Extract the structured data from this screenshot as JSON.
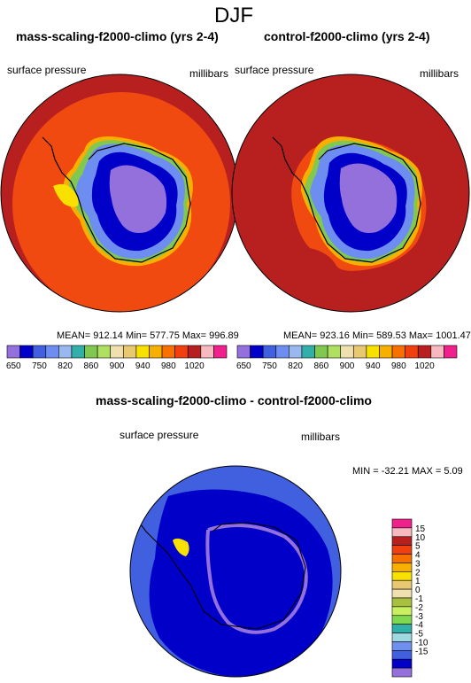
{
  "page_title": "DJF",
  "panels": [
    {
      "title": "mass-scaling-f2000-climo (yrs 2-4)",
      "variable": "surface pressure",
      "units": "millibars",
      "stats": "MEAN= 912.14  Min= 577.75  Max= 996.89"
    },
    {
      "title": "control-f2000-climo (yrs 2-4)",
      "variable": "surface pressure",
      "units": "millibars",
      "stats": "MEAN= 923.16  Min= 589.53  Max= 1001.47"
    }
  ],
  "abs_colorbar": {
    "colors": [
      "#9370db",
      "#0000c8",
      "#4060e0",
      "#6d8ef0",
      "#9ab8f0",
      "#30b0a8",
      "#80c850",
      "#b0e060",
      "#f0e0b0",
      "#e8c870",
      "#f8e000",
      "#f8b000",
      "#f87000",
      "#f04010",
      "#b82020",
      "#f8b8c0",
      "#f0208c"
    ],
    "labels": [
      "650",
      "750",
      "820",
      "860",
      "900",
      "940",
      "980",
      "1020"
    ]
  },
  "difference": {
    "title": "mass-scaling-f2000-climo - control-f2000-climo",
    "variable": "surface pressure",
    "units": "millibars",
    "stats": "MIN = -32.21 MAX =   5.09",
    "colorbar": {
      "colors_top_to_bottom": [
        "#f0208c",
        "#f8b8c0",
        "#b82020",
        "#f04010",
        "#f87000",
        "#f8b000",
        "#f8e000",
        "#e8c870",
        "#f0e0b0",
        "#a8c040",
        "#c8f060",
        "#80d850",
        "#30b0a8",
        "#a0d8e0",
        "#7090f0",
        "#4060e0",
        "#0000c8",
        "#9370db"
      ],
      "labels": [
        "15",
        "10",
        "5",
        "4",
        "3",
        "2",
        "1",
        "0",
        "-1",
        "-2",
        "-3",
        "-4",
        "-5",
        "-10",
        "-15"
      ]
    }
  }
}
